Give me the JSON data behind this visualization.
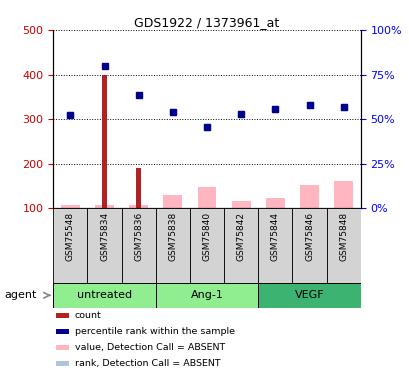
{
  "title": "GDS1922 / 1373961_at",
  "samples": [
    "GSM75548",
    "GSM75834",
    "GSM75836",
    "GSM75838",
    "GSM75840",
    "GSM75842",
    "GSM75844",
    "GSM75846",
    "GSM75848"
  ],
  "ylim_left": [
    100,
    500
  ],
  "ylim_right": [
    0,
    100
  ],
  "count_values": [
    null,
    400,
    190,
    null,
    null,
    null,
    null,
    null,
    null
  ],
  "count_color": "#B22222",
  "rank_values": [
    310,
    420,
    355,
    315,
    282,
    312,
    322,
    332,
    328
  ],
  "rank_color": "#00008B",
  "value_absent": [
    108,
    108,
    108,
    130,
    148,
    115,
    122,
    153,
    160
  ],
  "value_absent_color": "#FFB6C1",
  "rank_absent": [
    310,
    null,
    null,
    315,
    282,
    312,
    322,
    332,
    328
  ],
  "rank_absent_color": "#B0C4DE",
  "yticks_left": [
    100,
    200,
    300,
    400,
    500
  ],
  "yticks_right": [
    0,
    25,
    50,
    75,
    100
  ],
  "group_defs": [
    {
      "name": "untreated",
      "start": 0,
      "end": 2,
      "color": "#90EE90"
    },
    {
      "name": "Ang-1",
      "start": 3,
      "end": 5,
      "color": "#90EE90"
    },
    {
      "name": "VEGF",
      "start": 6,
      "end": 8,
      "color": "#3CB371"
    }
  ],
  "sample_box_color": "#D3D3D3",
  "agent_label": "agent",
  "legend_items": [
    {
      "color": "#B22222",
      "label": "count"
    },
    {
      "color": "#00008B",
      "label": "percentile rank within the sample"
    },
    {
      "color": "#FFB6C1",
      "label": "value, Detection Call = ABSENT"
    },
    {
      "color": "#B0C4DE",
      "label": "rank, Detection Call = ABSENT"
    }
  ]
}
